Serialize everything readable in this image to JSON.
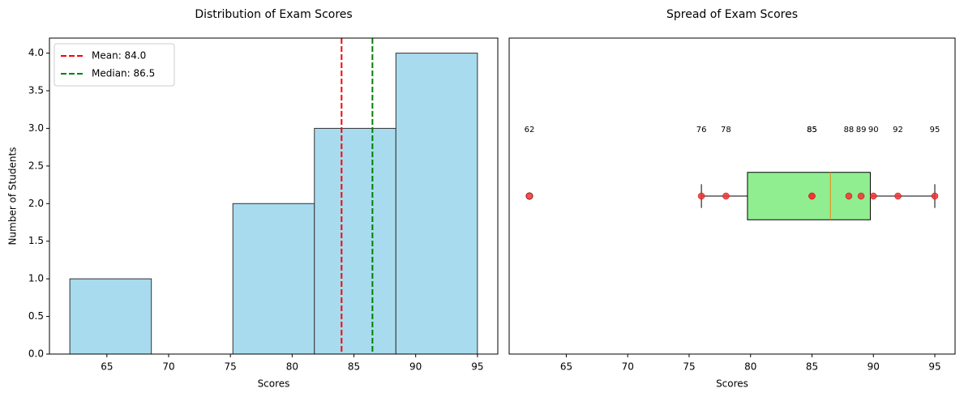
{
  "chart_data": [
    {
      "type": "histogram",
      "title": "Distribution of Exam Scores",
      "xlabel": "Scores",
      "ylabel": "Number of Students",
      "bins": [
        62,
        68.6,
        75.2,
        81.8,
        88.4,
        95
      ],
      "values": [
        1,
        0,
        2,
        3,
        4
      ],
      "color": "#a8dbee",
      "edgecolor": "#333333",
      "lines": [
        {
          "name": "Mean: 84.0",
          "value": 84.0,
          "color": "#ff0000"
        },
        {
          "name": "Median: 86.5",
          "value": 86.5,
          "color": "#008000"
        }
      ],
      "xlim": [
        60.35,
        96.65
      ],
      "xticks": [
        65,
        70,
        75,
        80,
        85,
        90,
        95
      ],
      "ylim": [
        0,
        4.2
      ],
      "yticks": [
        {
          "value": 0,
          "label": "0.0"
        },
        {
          "value": 0.5,
          "label": "0.5"
        },
        {
          "value": 1,
          "label": "1.0"
        },
        {
          "value": 1.5,
          "label": "1.5"
        },
        {
          "value": 2,
          "label": "2.0"
        },
        {
          "value": 2.5,
          "label": "2.5"
        },
        {
          "value": 3,
          "label": "3.0"
        },
        {
          "value": 3.5,
          "label": "3.5"
        },
        {
          "value": 4,
          "label": "4.0"
        }
      ],
      "legend": "upper left",
      "grid": false
    },
    {
      "type": "boxplot",
      "title": "Spread of Exam Scores",
      "xlabel": "Scores",
      "box": {
        "whisker_low": 76,
        "q1": 79.75,
        "median": 86.5,
        "q3": 89.75,
        "whisker_high": 95
      },
      "outliers": [
        62
      ],
      "points": {
        "values": [
          62,
          76,
          78,
          85,
          85,
          88,
          89,
          90,
          92,
          95
        ],
        "color": "#ee3333"
      },
      "color": "#90ee90",
      "median_color": "#ff7f0e",
      "xlim": [
        60.35,
        96.65
      ],
      "xticks": [
        65,
        70,
        75,
        80,
        85,
        90,
        95
      ],
      "ylim": [
        0.5,
        1.5
      ],
      "grid": false
    }
  ]
}
